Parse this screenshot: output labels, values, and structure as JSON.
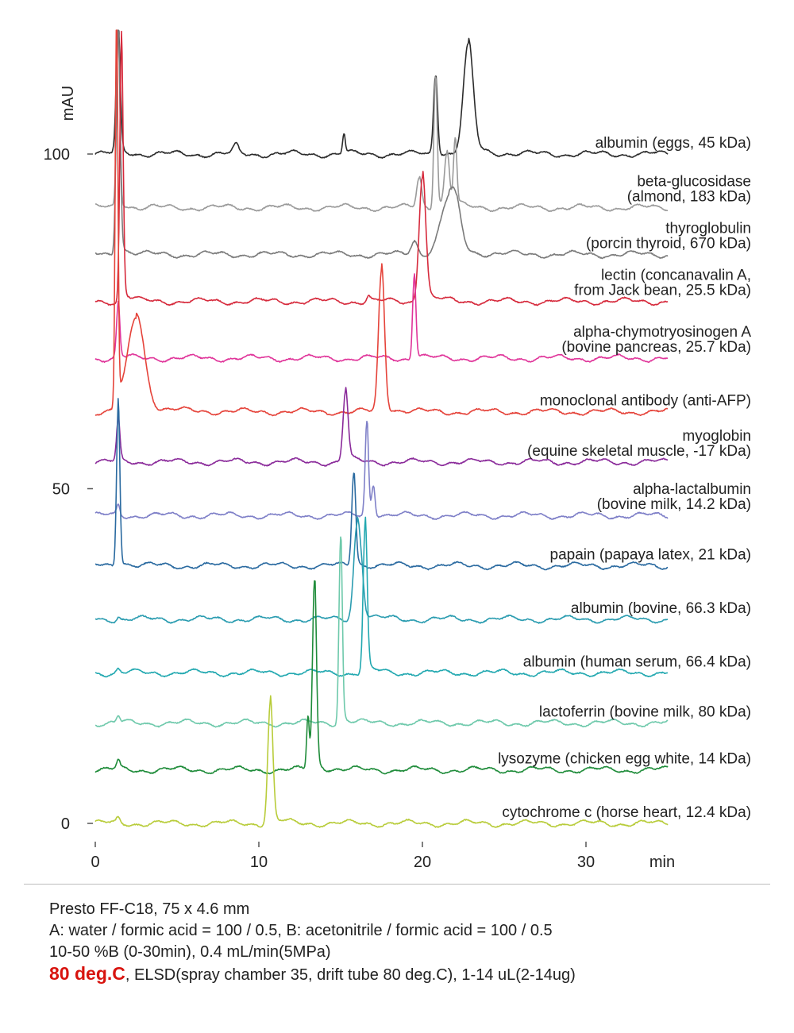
{
  "chart_data": {
    "type": "line",
    "ylabel": "mAU",
    "xlabel": "min",
    "xlim": [
      0,
      35
    ],
    "ylim": [
      0,
      100
    ],
    "x_ticks": [
      0,
      10,
      20,
      30
    ],
    "y_ticks": [
      0,
      50,
      100
    ],
    "series": [
      {
        "name": "albumin (eggs, 45 kDa)",
        "label_lines": [
          "albumin (eggs, 45 kDa)"
        ],
        "color": "#2b2b2b",
        "baseline": 100,
        "peaks": [
          [
            1.4,
            18,
            0.12
          ],
          [
            8.6,
            1.2,
            0.15
          ],
          [
            15.2,
            3.0,
            0.08
          ],
          [
            20.8,
            12,
            0.12
          ],
          [
            22.8,
            16,
            0.3
          ]
        ]
      },
      {
        "name": "beta-glucosidase (almond, 183 kDa)",
        "label_lines": [
          "beta-glucosidase",
          "(almond, 183 kDa)"
        ],
        "color": "#9a9a9a",
        "baseline": 92,
        "peaks": [
          [
            1.4,
            26,
            0.1
          ],
          [
            19.8,
            4.5,
            0.15
          ],
          [
            20.8,
            20,
            0.1
          ],
          [
            21.5,
            8,
            0.15
          ],
          [
            22.0,
            10,
            0.1
          ]
        ]
      },
      {
        "name": "thyroglobulin (porcin thyroid, 670 kDa)",
        "label_lines": [
          "thyroglobulin",
          "(porcin thyroid, 670 kDa)"
        ],
        "color": "#7a7a7a",
        "baseline": 85,
        "peaks": [
          [
            1.4,
            33,
            0.12
          ],
          [
            19.5,
            2.0,
            0.2
          ],
          [
            21.6,
            8,
            0.5
          ],
          [
            22.1,
            3,
            0.3
          ]
        ]
      },
      {
        "name": "lectin (concanavalin A, from Jack bean, 25.5 kDa)",
        "label_lines": [
          "lectin (concanavalin A,",
          "from Jack bean, 25.5 kDa)"
        ],
        "color": "#d62a3c",
        "baseline": 78,
        "peaks": [
          [
            1.6,
            38,
            0.1
          ],
          [
            16.7,
            0.8,
            0.1
          ],
          [
            20.0,
            19,
            0.2
          ]
        ]
      },
      {
        "name": "alpha-chymotryosinogen A (bovine pancreas, 25.7 kDa)",
        "label_lines": [
          "alpha-chymotryosinogen A",
          "(bovine pancreas, 25.7 kDa)"
        ],
        "color": "#e0359a",
        "baseline": 69.5,
        "peaks": [
          [
            1.4,
            8,
            0.1
          ],
          [
            19.5,
            12.5,
            0.1
          ]
        ]
      },
      {
        "name": "monoclonal antibody (anti-AFP)",
        "label_lines": [
          "monoclonal antibody (anti-AFP)"
        ],
        "color": "#e5433a",
        "baseline": 61.5,
        "peaks": [
          [
            1.3,
            59,
            0.08
          ],
          [
            2.5,
            14,
            0.5
          ],
          [
            17.5,
            21,
            0.18
          ]
        ]
      },
      {
        "name": "myoglobin (equine skeletal muscle, -17 kDa)",
        "label_lines": [
          "myoglobin",
          "(equine skeletal muscle, -17 kDa)"
        ],
        "color": "#8a2a9a",
        "baseline": 54,
        "peaks": [
          [
            1.4,
            6,
            0.1
          ],
          [
            15.3,
            10.5,
            0.15
          ]
        ]
      },
      {
        "name": "alpha-lactalbumin (bovine milk, 14.2 kDa)",
        "label_lines": [
          "alpha-lactalbumin",
          "(bovine milk, 14.2 kDa)"
        ],
        "color": "#7f80c8",
        "baseline": 46,
        "peaks": [
          [
            1.4,
            1.5,
            0.1
          ],
          [
            16.6,
            14,
            0.1
          ],
          [
            17.0,
            4.5,
            0.1
          ]
        ]
      },
      {
        "name": "papain (papaya latex, 21 kDa)",
        "label_lines": [
          "papain (papaya latex, 21 kDa)"
        ],
        "color": "#2a6aa0",
        "baseline": 38.5,
        "peaks": [
          [
            1.4,
            24,
            0.1
          ],
          [
            15.8,
            14,
            0.12
          ]
        ]
      },
      {
        "name": "albumin (bovine, 66.3 kDa)",
        "label_lines": [
          "albumin (bovine, 66.3 kDa)"
        ],
        "color": "#2a9cb0",
        "baseline": 30.5,
        "peaks": [
          [
            1.4,
            0.5,
            0.1
          ],
          [
            16.0,
            14,
            0.2
          ],
          [
            16.3,
            4,
            0.15
          ]
        ]
      },
      {
        "name": "albumin (human serum, 66.4 kDa)",
        "label_lines": [
          "albumin (human serum, 66.4 kDa)"
        ],
        "color": "#22a8b0",
        "baseline": 22.5,
        "peaks": [
          [
            1.4,
            0.5,
            0.1
          ],
          [
            16.5,
            22,
            0.12
          ]
        ]
      },
      {
        "name": "lactoferrin (bovine milk, 80 kDa)",
        "label_lines": [
          "lactoferrin (bovine milk, 80 kDa)"
        ],
        "color": "#6ec9ab",
        "baseline": 15,
        "peaks": [
          [
            1.4,
            1.0,
            0.1
          ],
          [
            15.0,
            28,
            0.1
          ]
        ]
      },
      {
        "name": "lysozyme (chicken egg white, 14 kDa)",
        "label_lines": [
          "lysozyme (chicken egg white, 14 kDa)"
        ],
        "color": "#1f8c3a",
        "baseline": 8,
        "peaks": [
          [
            1.4,
            1.2,
            0.1
          ],
          [
            13.0,
            8,
            0.08
          ],
          [
            13.4,
            28,
            0.12
          ]
        ]
      },
      {
        "name": "cytochrome c (horse heart, 12.4 kDa)",
        "label_lines": [
          "cytochrome c (horse heart, 12.4 kDa)"
        ],
        "color": "#b8cc3a",
        "baseline": 0,
        "peaks": [
          [
            1.4,
            0.7,
            0.1
          ],
          [
            10.7,
            18,
            0.15
          ]
        ]
      }
    ]
  },
  "conditions": {
    "column": "Presto FF-C18, 75 x 4.6 mm",
    "mobile_phase": "A: water / formic acid = 100 / 0.5, B: acetonitrile / formic acid = 100 / 0.5",
    "gradient": "10-50 %B (0-30min), 0.4 mL/min(5MPa)",
    "temperature": "80 deg.C",
    "detection": ", ELSD(spray chamber 35, drift tube 80 deg.C), 1-14 uL(2-14ug)"
  }
}
